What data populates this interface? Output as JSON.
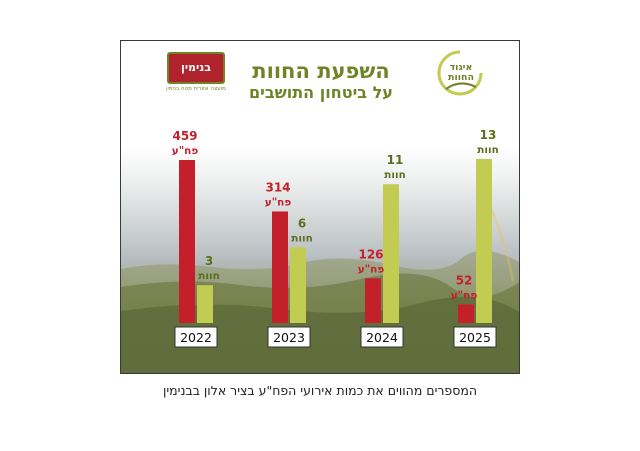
{
  "title": "השפעת החוות",
  "subtitle": "על ביטחון התושבים",
  "caption": "המספרים מהווים את כמות אירועי הפח\"ע בציר אלון בבנימין",
  "logos": {
    "left_name": "בנימין",
    "left_tagline": "מועצה אזורית מטה בנימין",
    "right_name_line1": "איגוד",
    "right_name_line2": "החוות"
  },
  "colors": {
    "terror": "#c4202c",
    "farms": "#c3cc52",
    "title": "#6f8427",
    "farm_label": "#5e6e1e"
  },
  "chart_data": {
    "type": "bar",
    "title": "השפעת החוות",
    "subtitle": "על ביטחון התושבים",
    "categories": [
      "2022",
      "2023",
      "2024",
      "2025"
    ],
    "series": [
      {
        "name": "פח\"ע",
        "values": [
          459,
          314,
          126,
          52
        ]
      },
      {
        "name": "חוות",
        "values": [
          3,
          6,
          11,
          13
        ]
      }
    ],
    "value_unit_labels": {
      "terror": "פח\"ע",
      "farms": "חוות"
    }
  }
}
